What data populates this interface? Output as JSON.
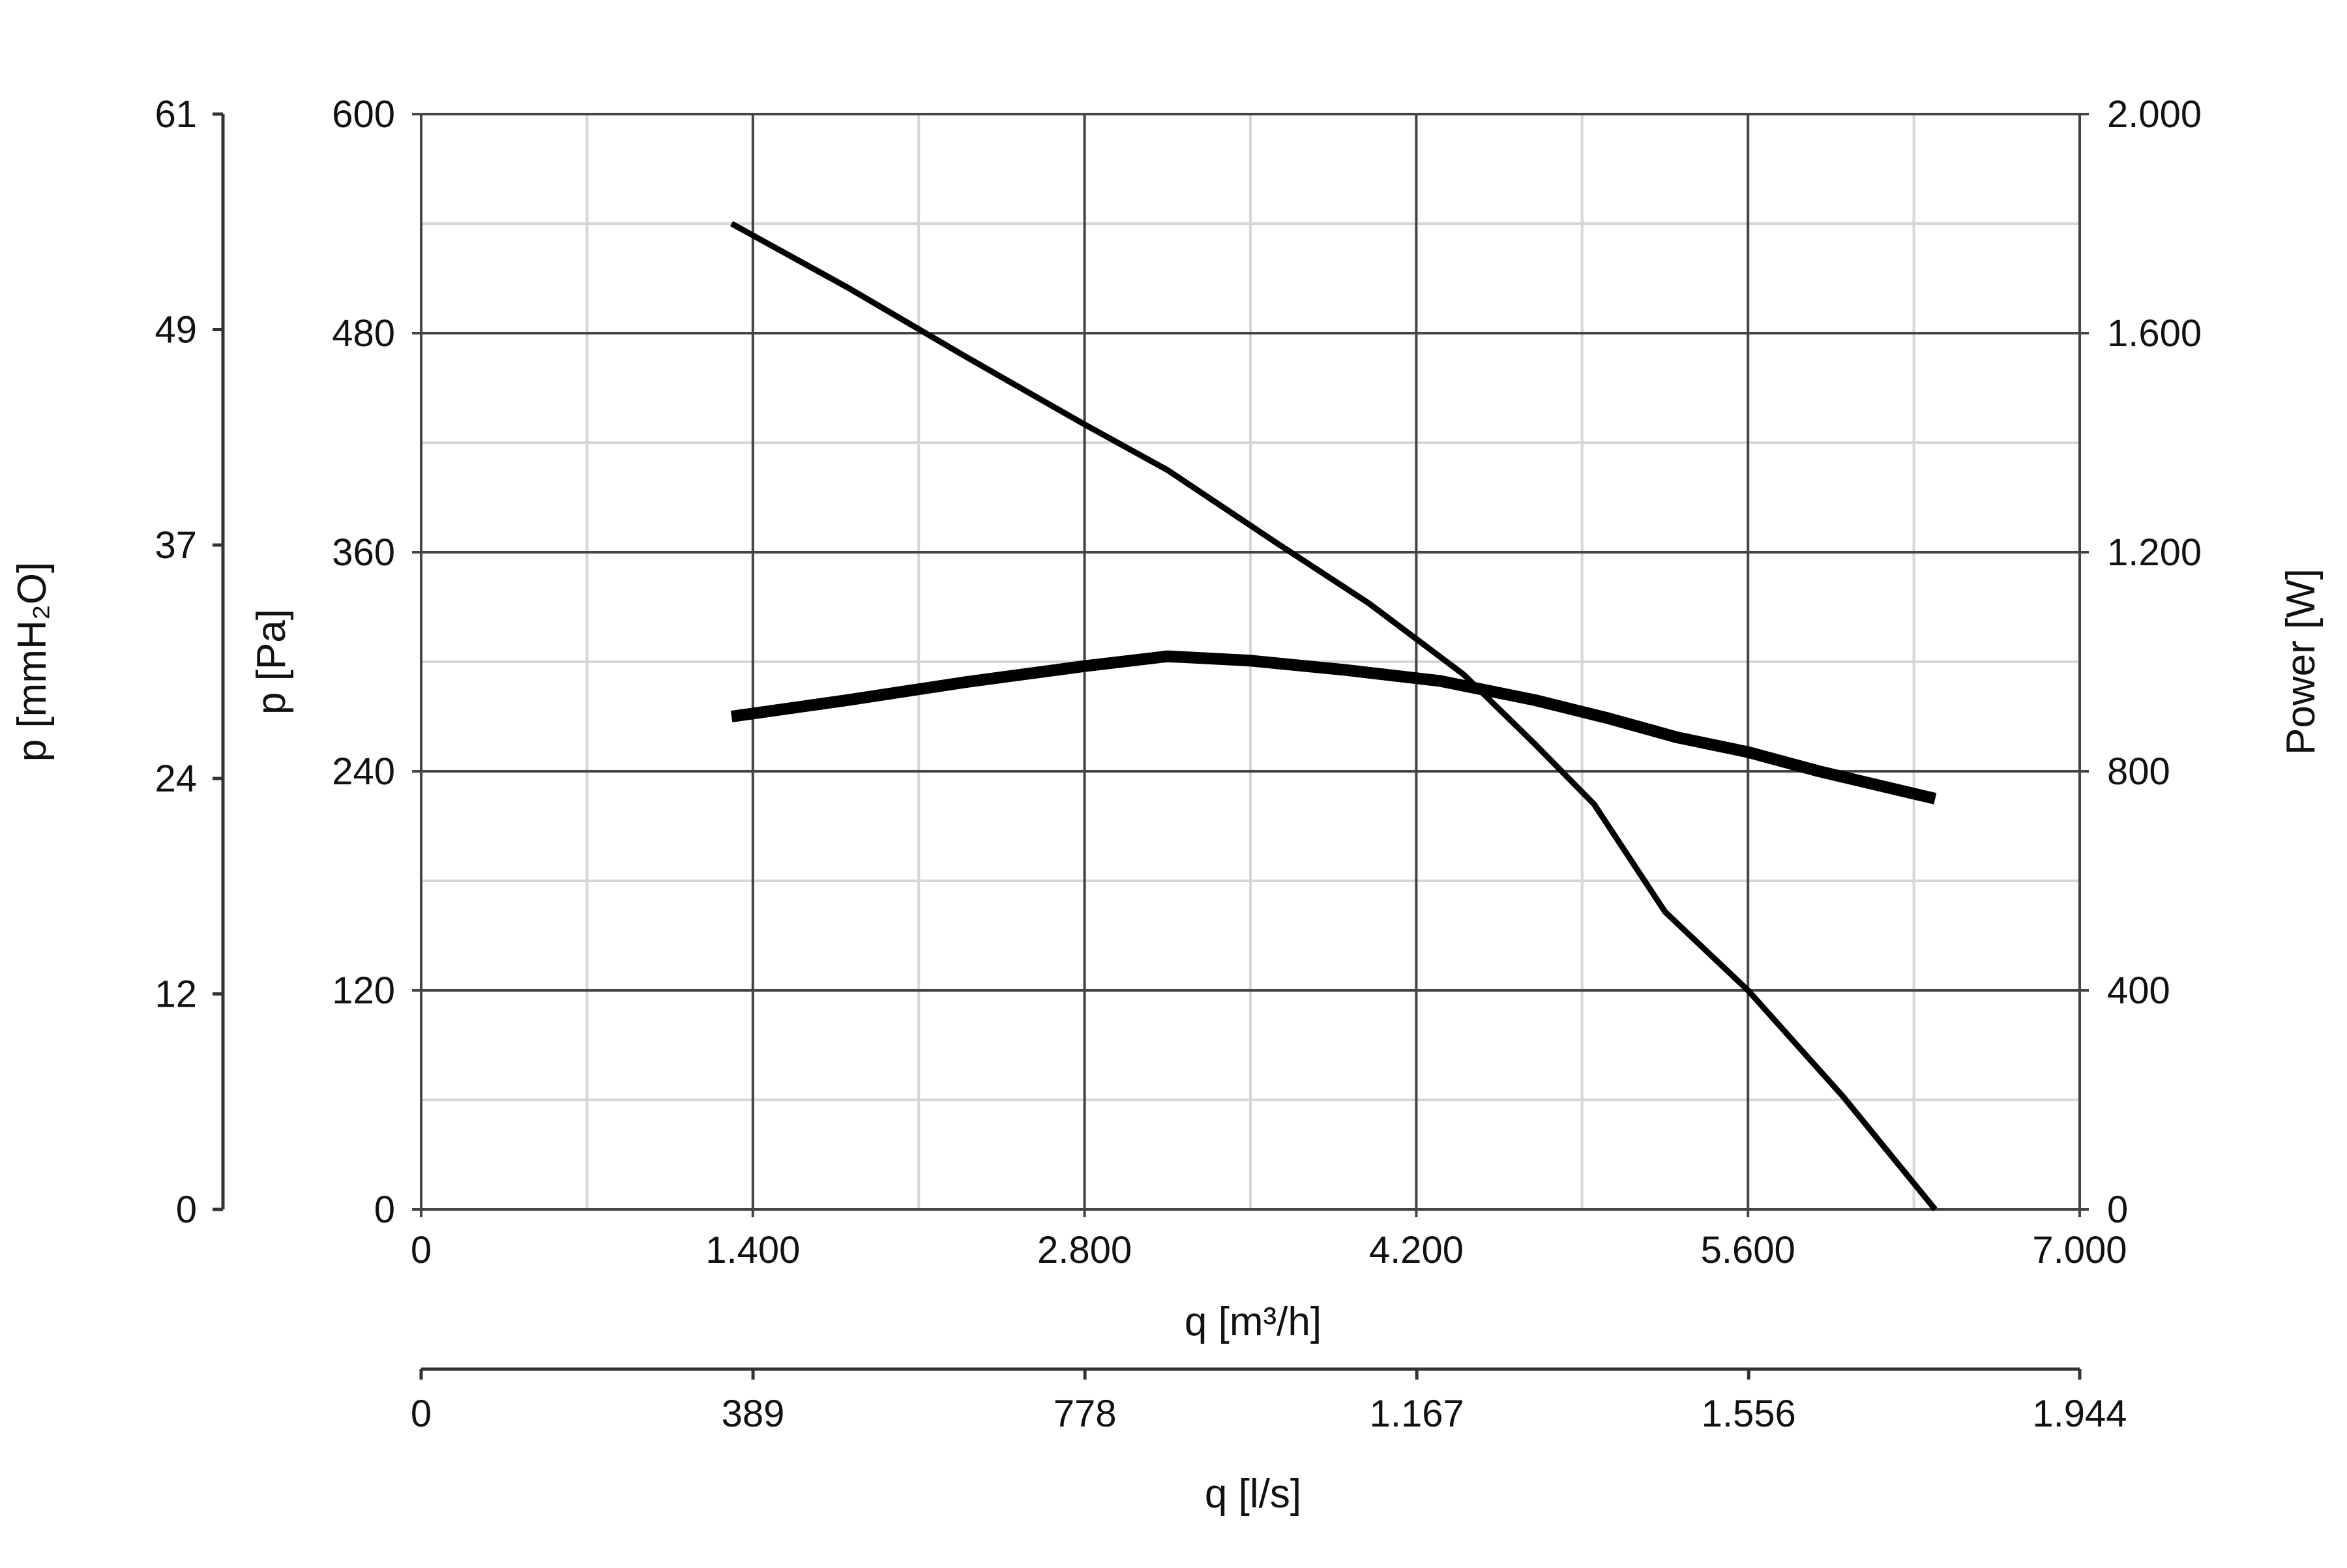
{
  "chart_data": {
    "type": "line",
    "x_primary": {
      "label": "q [m³/h]",
      "range": [
        0,
        7000
      ],
      "ticks": [
        0,
        1400,
        2800,
        4200,
        5600,
        7000
      ],
      "tick_labels": [
        "0",
        "1.400",
        "2.800",
        "4.200",
        "5.600",
        "7.000"
      ]
    },
    "x_secondary": {
      "label": "q [l/s]",
      "range": [
        0,
        1944
      ],
      "ticks": [
        0,
        389,
        778,
        1167,
        1556,
        1944
      ],
      "tick_labels": [
        "0",
        "389",
        "778",
        "1.167",
        "1.556",
        "1.944"
      ]
    },
    "y_primary": {
      "label": "p [Pa]",
      "range": [
        0,
        600
      ],
      "ticks": [
        0,
        120,
        240,
        360,
        480,
        600
      ],
      "tick_labels": [
        "0",
        "120",
        "240",
        "360",
        "480",
        "600"
      ]
    },
    "y_outer": {
      "label": "p [mmH₂O]",
      "range": [
        0,
        61
      ],
      "ticks": [
        0,
        12,
        24,
        37,
        49,
        61
      ],
      "tick_labels": [
        "0",
        "12",
        "24",
        "37",
        "49",
        "61"
      ]
    },
    "y_right": {
      "label": "Power [W]",
      "range": [
        0,
        2000
      ],
      "ticks": [
        0,
        400,
        800,
        1200,
        1600,
        2000
      ],
      "tick_labels": [
        "0",
        "400",
        "800",
        "1.200",
        "1.600",
        "2.000"
      ]
    },
    "grid": true,
    "series": [
      {
        "axis": "y_primary",
        "points": [
          [
            1310,
            540
          ],
          [
            1800,
            505
          ],
          [
            2300,
            467
          ],
          [
            2800,
            430
          ],
          [
            3150,
            405
          ],
          [
            3600,
            366
          ],
          [
            4000,
            332
          ],
          [
            4400,
            293
          ],
          [
            4700,
            255
          ],
          [
            4950,
            222
          ],
          [
            5250,
            163
          ],
          [
            5600,
            120
          ],
          [
            6000,
            62
          ],
          [
            6390,
            0
          ]
        ]
      },
      {
        "axis": "y_right",
        "points": [
          [
            1310,
            900
          ],
          [
            1800,
            930
          ],
          [
            2300,
            963
          ],
          [
            2800,
            992
          ],
          [
            3150,
            1010
          ],
          [
            3500,
            1002
          ],
          [
            3900,
            985
          ],
          [
            4300,
            965
          ],
          [
            4700,
            930
          ],
          [
            5000,
            898
          ],
          [
            5300,
            862
          ],
          [
            5600,
            835
          ],
          [
            5900,
            800
          ],
          [
            6390,
            750
          ]
        ]
      }
    ]
  }
}
